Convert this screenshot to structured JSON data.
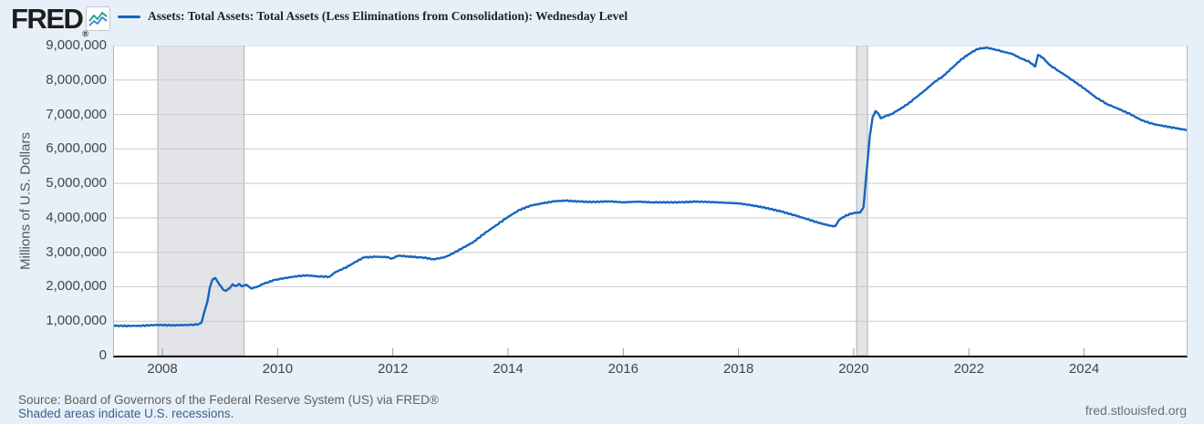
{
  "header": {
    "logo_text": "FRED",
    "logo_registered": "®",
    "legend_label": "Assets: Total Assets: Total Assets (Less Eliminations from Consolidation): Wednesday Level"
  },
  "footer": {
    "source_text": "Source: Board of Governors of the Federal Reserve System (US) via FRED®",
    "recession_note": "Shaded areas indicate U.S. recessions.",
    "site_link": "fred.stlouisfed.org"
  },
  "colors": {
    "line": "#1565c0",
    "background": "#e7f0f8",
    "plot_background": "#ffffff",
    "gridline": "#c9c9c9",
    "recession_band": "#e2e4e7",
    "recession_band_edge": "#aeb1b5",
    "axis": "#0b0b0b",
    "tick_color": "#999999",
    "tick_label": "#454545",
    "link": "#37628f",
    "logo_icon_blue": "#3b82d0",
    "logo_icon_teal": "#1a9e8f"
  },
  "chart_data": {
    "type": "line",
    "title": "Assets: Total Assets: Total Assets (Less Eliminations from Consolidation): Wednesday Level",
    "xlabel": "",
    "ylabel": "Millions of U.S. Dollars",
    "xlim": [
      2007.16,
      2025.78
    ],
    "ylim": [
      0,
      9000000
    ],
    "y_ticks": [
      0,
      1000000,
      2000000,
      3000000,
      4000000,
      5000000,
      6000000,
      7000000,
      8000000,
      9000000
    ],
    "x_ticks": [
      2008,
      2010,
      2012,
      2014,
      2016,
      2018,
      2020,
      2022,
      2024
    ],
    "grid": "horizontal",
    "legend_position": "top",
    "recessions": [
      [
        2007.92,
        2009.42
      ],
      [
        2020.05,
        2020.24
      ]
    ],
    "series": [
      {
        "name": "Assets: Total Assets: Total Assets (Less Eliminations from Consolidation): Wednesday Level",
        "color": "#1565c0",
        "points": [
          [
            2007.16,
            870000
          ],
          [
            2007.3,
            860000
          ],
          [
            2007.6,
            865000
          ],
          [
            2007.9,
            890000
          ],
          [
            2008.2,
            880000
          ],
          [
            2008.45,
            890000
          ],
          [
            2008.62,
            905000
          ],
          [
            2008.68,
            960000
          ],
          [
            2008.72,
            1220000
          ],
          [
            2008.78,
            1560000
          ],
          [
            2008.82,
            1950000
          ],
          [
            2008.87,
            2210000
          ],
          [
            2008.92,
            2250000
          ],
          [
            2008.97,
            2120000
          ],
          [
            2009.05,
            1920000
          ],
          [
            2009.1,
            1880000
          ],
          [
            2009.17,
            1960000
          ],
          [
            2009.22,
            2070000
          ],
          [
            2009.28,
            2020000
          ],
          [
            2009.33,
            2080000
          ],
          [
            2009.38,
            2010000
          ],
          [
            2009.45,
            2060000
          ],
          [
            2009.54,
            1950000
          ],
          [
            2009.65,
            2000000
          ],
          [
            2009.75,
            2080000
          ],
          [
            2009.85,
            2140000
          ],
          [
            2009.95,
            2200000
          ],
          [
            2010.1,
            2240000
          ],
          [
            2010.3,
            2300000
          ],
          [
            2010.5,
            2330000
          ],
          [
            2010.7,
            2300000
          ],
          [
            2010.9,
            2290000
          ],
          [
            2011.0,
            2420000
          ],
          [
            2011.2,
            2570000
          ],
          [
            2011.35,
            2720000
          ],
          [
            2011.5,
            2850000
          ],
          [
            2011.7,
            2870000
          ],
          [
            2011.9,
            2860000
          ],
          [
            2011.97,
            2810000
          ],
          [
            2012.1,
            2900000
          ],
          [
            2012.25,
            2880000
          ],
          [
            2012.4,
            2860000
          ],
          [
            2012.55,
            2840000
          ],
          [
            2012.7,
            2800000
          ],
          [
            2012.8,
            2820000
          ],
          [
            2012.9,
            2860000
          ],
          [
            2013.0,
            2930000
          ],
          [
            2013.2,
            3110000
          ],
          [
            2013.4,
            3300000
          ],
          [
            2013.6,
            3560000
          ],
          [
            2013.8,
            3790000
          ],
          [
            2014.0,
            4030000
          ],
          [
            2014.2,
            4230000
          ],
          [
            2014.4,
            4360000
          ],
          [
            2014.6,
            4420000
          ],
          [
            2014.8,
            4480000
          ],
          [
            2015.0,
            4500000
          ],
          [
            2015.25,
            4470000
          ],
          [
            2015.5,
            4460000
          ],
          [
            2015.75,
            4480000
          ],
          [
            2016.0,
            4450000
          ],
          [
            2016.25,
            4470000
          ],
          [
            2016.5,
            4450000
          ],
          [
            2016.75,
            4450000
          ],
          [
            2017.0,
            4450000
          ],
          [
            2017.25,
            4470000
          ],
          [
            2017.5,
            4460000
          ],
          [
            2017.75,
            4440000
          ],
          [
            2018.0,
            4420000
          ],
          [
            2018.25,
            4360000
          ],
          [
            2018.5,
            4280000
          ],
          [
            2018.75,
            4180000
          ],
          [
            2019.0,
            4060000
          ],
          [
            2019.2,
            3960000
          ],
          [
            2019.4,
            3850000
          ],
          [
            2019.6,
            3770000
          ],
          [
            2019.68,
            3760000
          ],
          [
            2019.75,
            3950000
          ],
          [
            2019.85,
            4050000
          ],
          [
            2019.95,
            4120000
          ],
          [
            2020.05,
            4150000
          ],
          [
            2020.12,
            4170000
          ],
          [
            2020.17,
            4310000
          ],
          [
            2020.22,
            5250000
          ],
          [
            2020.28,
            6370000
          ],
          [
            2020.33,
            6930000
          ],
          [
            2020.38,
            7100000
          ],
          [
            2020.42,
            7040000
          ],
          [
            2020.47,
            6890000
          ],
          [
            2020.55,
            6950000
          ],
          [
            2020.65,
            7010000
          ],
          [
            2020.8,
            7150000
          ],
          [
            2020.95,
            7320000
          ],
          [
            2021.1,
            7520000
          ],
          [
            2021.25,
            7720000
          ],
          [
            2021.4,
            7940000
          ],
          [
            2021.55,
            8110000
          ],
          [
            2021.7,
            8340000
          ],
          [
            2021.85,
            8570000
          ],
          [
            2022.0,
            8760000
          ],
          [
            2022.15,
            8900000
          ],
          [
            2022.3,
            8940000
          ],
          [
            2022.45,
            8890000
          ],
          [
            2022.6,
            8820000
          ],
          [
            2022.75,
            8760000
          ],
          [
            2022.9,
            8630000
          ],
          [
            2023.05,
            8530000
          ],
          [
            2023.15,
            8390000
          ],
          [
            2023.2,
            8730000
          ],
          [
            2023.28,
            8650000
          ],
          [
            2023.4,
            8440000
          ],
          [
            2023.55,
            8270000
          ],
          [
            2023.7,
            8110000
          ],
          [
            2023.85,
            7930000
          ],
          [
            2024.0,
            7760000
          ],
          [
            2024.2,
            7500000
          ],
          [
            2024.4,
            7300000
          ],
          [
            2024.6,
            7160000
          ],
          [
            2024.8,
            7010000
          ],
          [
            2025.0,
            6830000
          ],
          [
            2025.2,
            6720000
          ],
          [
            2025.4,
            6660000
          ],
          [
            2025.6,
            6600000
          ],
          [
            2025.78,
            6550000
          ]
        ]
      }
    ]
  }
}
